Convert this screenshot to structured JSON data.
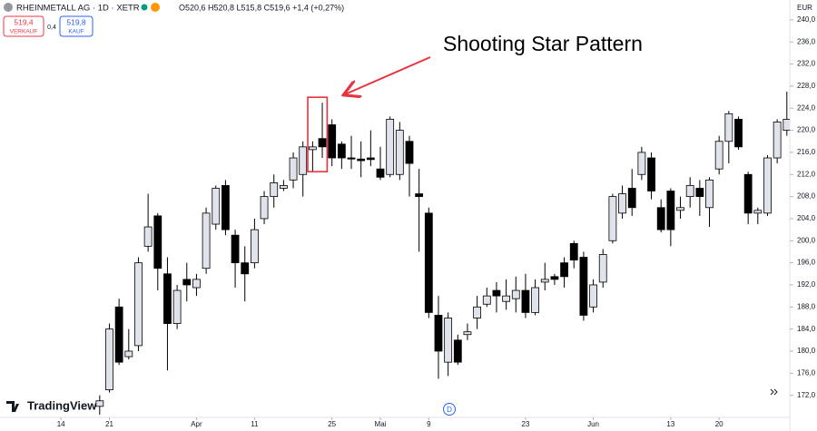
{
  "header": {
    "symbol": "RHEINMETALL AG · 1D · XETR",
    "ohlc": "O520,6 H520,8 L515,8 C519,6 +1,4 (+0,27%)",
    "sell_price": "519,4",
    "sell_label": "VERKAUF",
    "spread": "0,4",
    "buy_price": "519,8",
    "buy_label": "KAUF",
    "currency": "EUR",
    "logo": "TradingView"
  },
  "chart_data": {
    "type": "candlestick",
    "annotation": "Shooting Star Pattern",
    "highlight_index": 23,
    "open": [
      170,
      173,
      188,
      179,
      181,
      199,
      204.5,
      194,
      185,
      193,
      191.5,
      195,
      203,
      210,
      201,
      196,
      196,
      204,
      208,
      209.5,
      211,
      212,
      216.5,
      218.5,
      221,
      217.5,
      215,
      214.8,
      215,
      213,
      212,
      212,
      218,
      208.5,
      205,
      186.5,
      178,
      182,
      183,
      186,
      188.5,
      191,
      189,
      189.5,
      191,
      187,
      192.5,
      193.5,
      196,
      199.5,
      197,
      188,
      192.5,
      200,
      205,
      209.5,
      212,
      215,
      206,
      209,
      205.5,
      208,
      209.5,
      206,
      213,
      218,
      222,
      212,
      205,
      205,
      215,
      220
    ],
    "high": [
      172,
      185,
      189.5,
      184,
      197,
      208.5,
      205,
      197,
      192,
      196,
      194,
      206,
      210,
      211,
      202,
      199,
      204,
      209,
      212,
      211,
      216,
      218,
      218,
      225,
      222,
      218,
      219,
      218,
      220,
      217,
      222.5,
      221.5,
      219,
      213,
      206,
      190,
      187,
      183,
      185,
      190,
      191.5,
      192.5,
      193,
      193.5,
      194,
      193,
      196,
      194,
      197,
      200,
      198,
      193,
      198.5,
      208.5,
      210,
      213,
      217,
      216,
      207.5,
      209.5,
      208,
      211.5,
      211,
      211.5,
      219,
      223.5,
      222.5,
      212.5,
      206,
      215.5,
      222,
      227
    ],
    "low": [
      168.5,
      172.5,
      177.5,
      178.5,
      180,
      198,
      191,
      176.5,
      184,
      189,
      190,
      194,
      202,
      201,
      191.5,
      189,
      195,
      203,
      206,
      209,
      209.5,
      208,
      212.5,
      215,
      213.5,
      213,
      213,
      211.5,
      213.5,
      211,
      211.5,
      211,
      208,
      198,
      186,
      175,
      175.5,
      177.5,
      182,
      184,
      188,
      187,
      187.5,
      187,
      186,
      186.5,
      191,
      192,
      191.5,
      195,
      185.5,
      187,
      191.5,
      199.5,
      204,
      204.5,
      211,
      207.5,
      201.5,
      199,
      204,
      206,
      204.5,
      202.5,
      212,
      214,
      216.5,
      203,
      203,
      204.5,
      214,
      219
    ],
    "close": [
      171,
      184,
      178,
      180,
      196,
      202.5,
      195,
      185,
      191,
      192,
      193,
      205,
      209.5,
      202,
      196,
      194,
      202,
      208,
      210.5,
      210,
      215,
      217,
      217,
      217,
      215,
      215,
      214.8,
      214.5,
      214.7,
      211.5,
      222,
      220,
      214,
      208,
      187,
      180,
      186,
      178,
      183.5,
      188,
      190,
      190,
      190,
      191,
      187,
      191.5,
      193,
      193,
      193.5,
      196.5,
      186.5,
      192,
      197.5,
      208,
      208.5,
      206,
      216,
      209,
      202,
      202,
      206,
      210,
      208,
      211,
      218,
      223,
      217,
      205,
      205.5,
      215,
      221.5,
      222
    ],
    "up_color": "#e0e3eb",
    "down_color": "#000000",
    "highlight_color": "#e8323c",
    "xlim": [
      -10.3,
      71.3
    ],
    "xticks": [
      {
        "value": -4,
        "label": "14"
      },
      {
        "value": 1,
        "label": "21"
      },
      {
        "value": 10,
        "label": "Apr"
      },
      {
        "value": 16,
        "label": "11"
      },
      {
        "value": 24,
        "label": "25"
      },
      {
        "value": 29,
        "label": "Mai"
      },
      {
        "value": 34,
        "label": "9"
      },
      {
        "value": 44,
        "label": "23"
      },
      {
        "value": 51,
        "label": "Jun"
      },
      {
        "value": 59,
        "label": "13"
      },
      {
        "value": 64,
        "label": "20"
      }
    ],
    "ylim": [
      168,
      243.6
    ],
    "yticks": [
      {
        "value": 172,
        "label": "172,0"
      },
      {
        "value": 176,
        "label": "176,0"
      },
      {
        "value": 180,
        "label": "180,0"
      },
      {
        "value": 184,
        "label": "184,0"
      },
      {
        "value": 188,
        "label": "188,0"
      },
      {
        "value": 192,
        "label": "192,0"
      },
      {
        "value": 196,
        "label": "196,0"
      },
      {
        "value": 200,
        "label": "200,0"
      },
      {
        "value": 204,
        "label": "204,0"
      },
      {
        "value": 208,
        "label": "208,0"
      },
      {
        "value": 212,
        "label": "212,0"
      },
      {
        "value": 216,
        "label": "216,0"
      },
      {
        "value": 220,
        "label": "220,0"
      },
      {
        "value": 224,
        "label": "224,0"
      },
      {
        "value": 228,
        "label": "228,0"
      },
      {
        "value": 232,
        "label": "232,0"
      },
      {
        "value": 236,
        "label": "236,0"
      },
      {
        "value": 240,
        "label": "240,0"
      }
    ]
  }
}
